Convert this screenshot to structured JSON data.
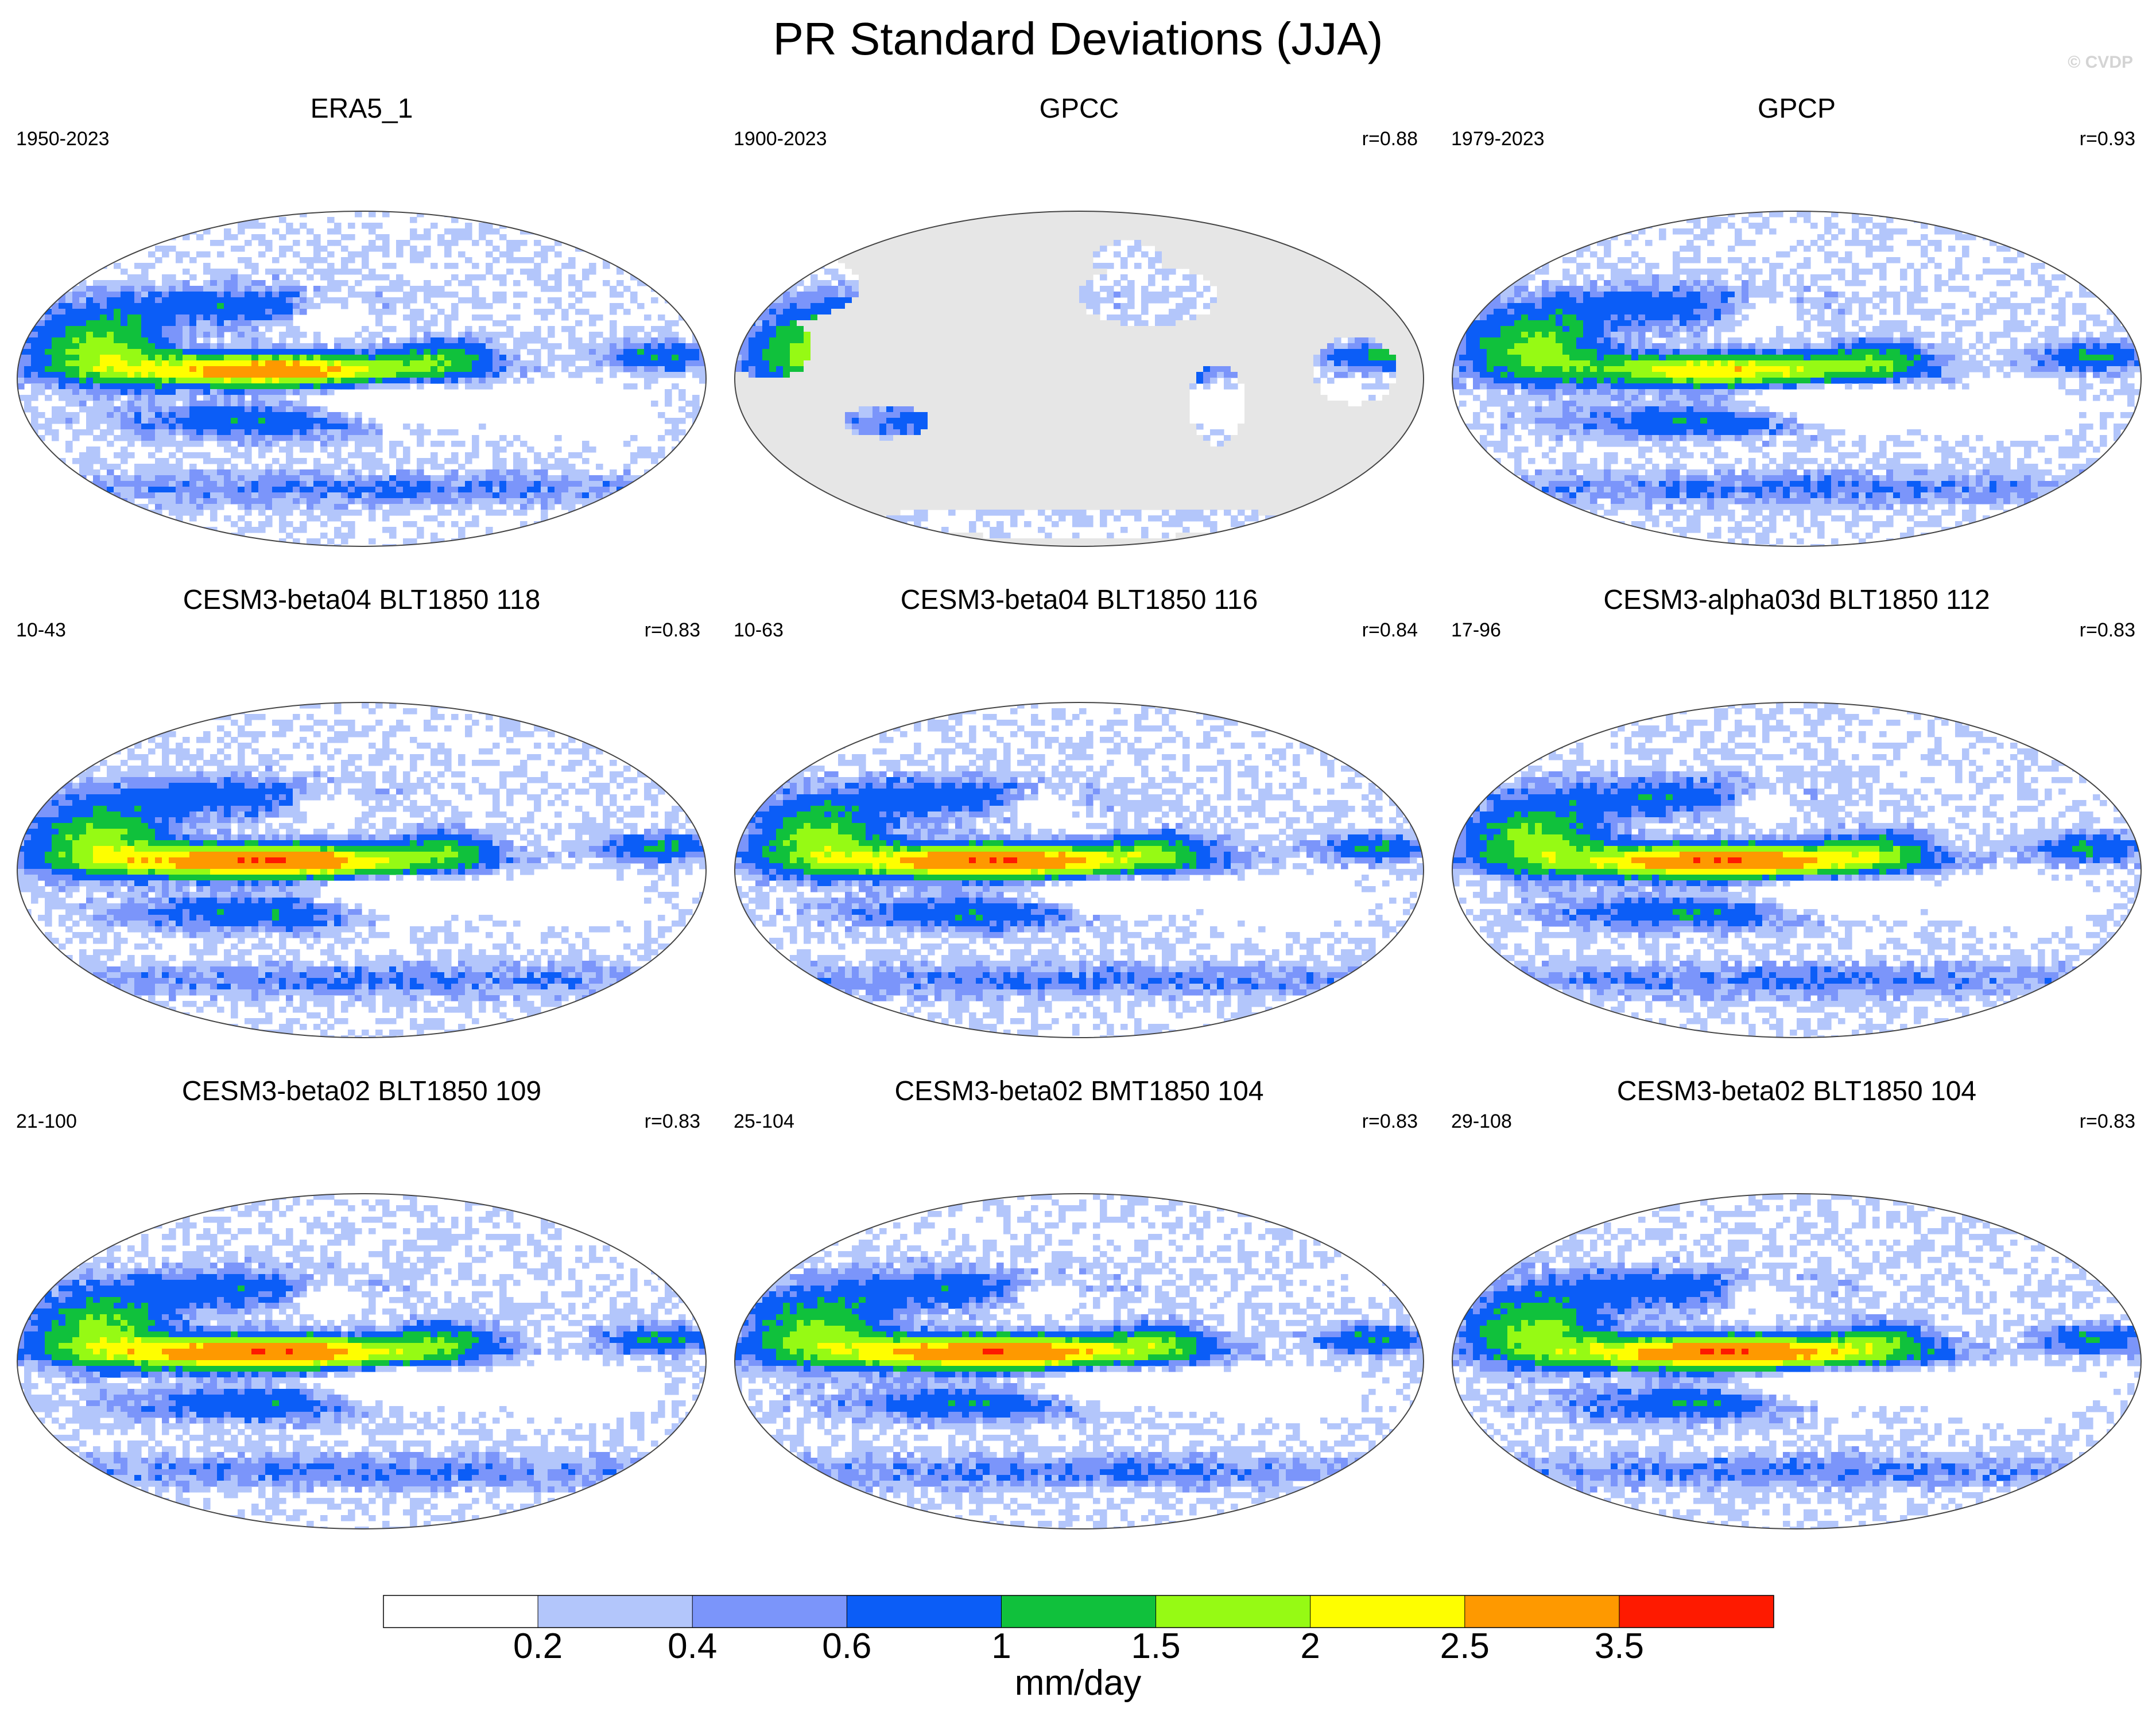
{
  "title": "PR Standard Deviations (JJA)",
  "copyright": "© CVDP",
  "chart_data": [
    {
      "type": "heatmap",
      "title": "ERA5_1",
      "years": "1950-2023",
      "r": "",
      "pattern": 0,
      "variant": "era5"
    },
    {
      "type": "heatmap",
      "title": "GPCC",
      "years": "1900-2023",
      "r": "r=0.88",
      "pattern": 1,
      "variant": "gpcc"
    },
    {
      "type": "heatmap",
      "title": "GPCP",
      "years": "1979-2023",
      "r": "r=0.93",
      "pattern": 2,
      "variant": "gpcp"
    },
    {
      "type": "heatmap",
      "title": "CESM3-beta04 BLT1850 118",
      "years": "10-43",
      "r": "r=0.83",
      "pattern": 3,
      "variant": "model"
    },
    {
      "type": "heatmap",
      "title": "CESM3-beta04 BLT1850 116",
      "years": "10-63",
      "r": "r=0.84",
      "pattern": 4,
      "variant": "model"
    },
    {
      "type": "heatmap",
      "title": "CESM3-alpha03d BLT1850 112",
      "years": "17-96",
      "r": "r=0.83",
      "pattern": 5,
      "variant": "model"
    },
    {
      "type": "heatmap",
      "title": "CESM3-beta02 BLT1850 109",
      "years": "21-100",
      "r": "r=0.83",
      "pattern": 6,
      "variant": "model"
    },
    {
      "type": "heatmap",
      "title": "CESM3-beta02 BMT1850 104",
      "years": "25-104",
      "r": "r=0.83",
      "pattern": 7,
      "variant": "model"
    },
    {
      "type": "heatmap",
      "title": "CESM3-beta02 BLT1850 104",
      "years": "29-108",
      "r": "r=0.83",
      "pattern": 8,
      "variant": "model"
    }
  ],
  "colorbar": {
    "unit": "mm/day",
    "ticks": [
      "0.2",
      "0.4",
      "0.6",
      "1",
      "1.5",
      "2",
      "2.5",
      "3.5"
    ],
    "colors": [
      "#ffffff",
      "#b3c6fb",
      "#7b95fa",
      "#0b5df7",
      "#10c13c",
      "#96fa14",
      "#fefe00",
      "#fe9900",
      "#fe1a00"
    ],
    "missing_color": "#e6e6e6"
  }
}
